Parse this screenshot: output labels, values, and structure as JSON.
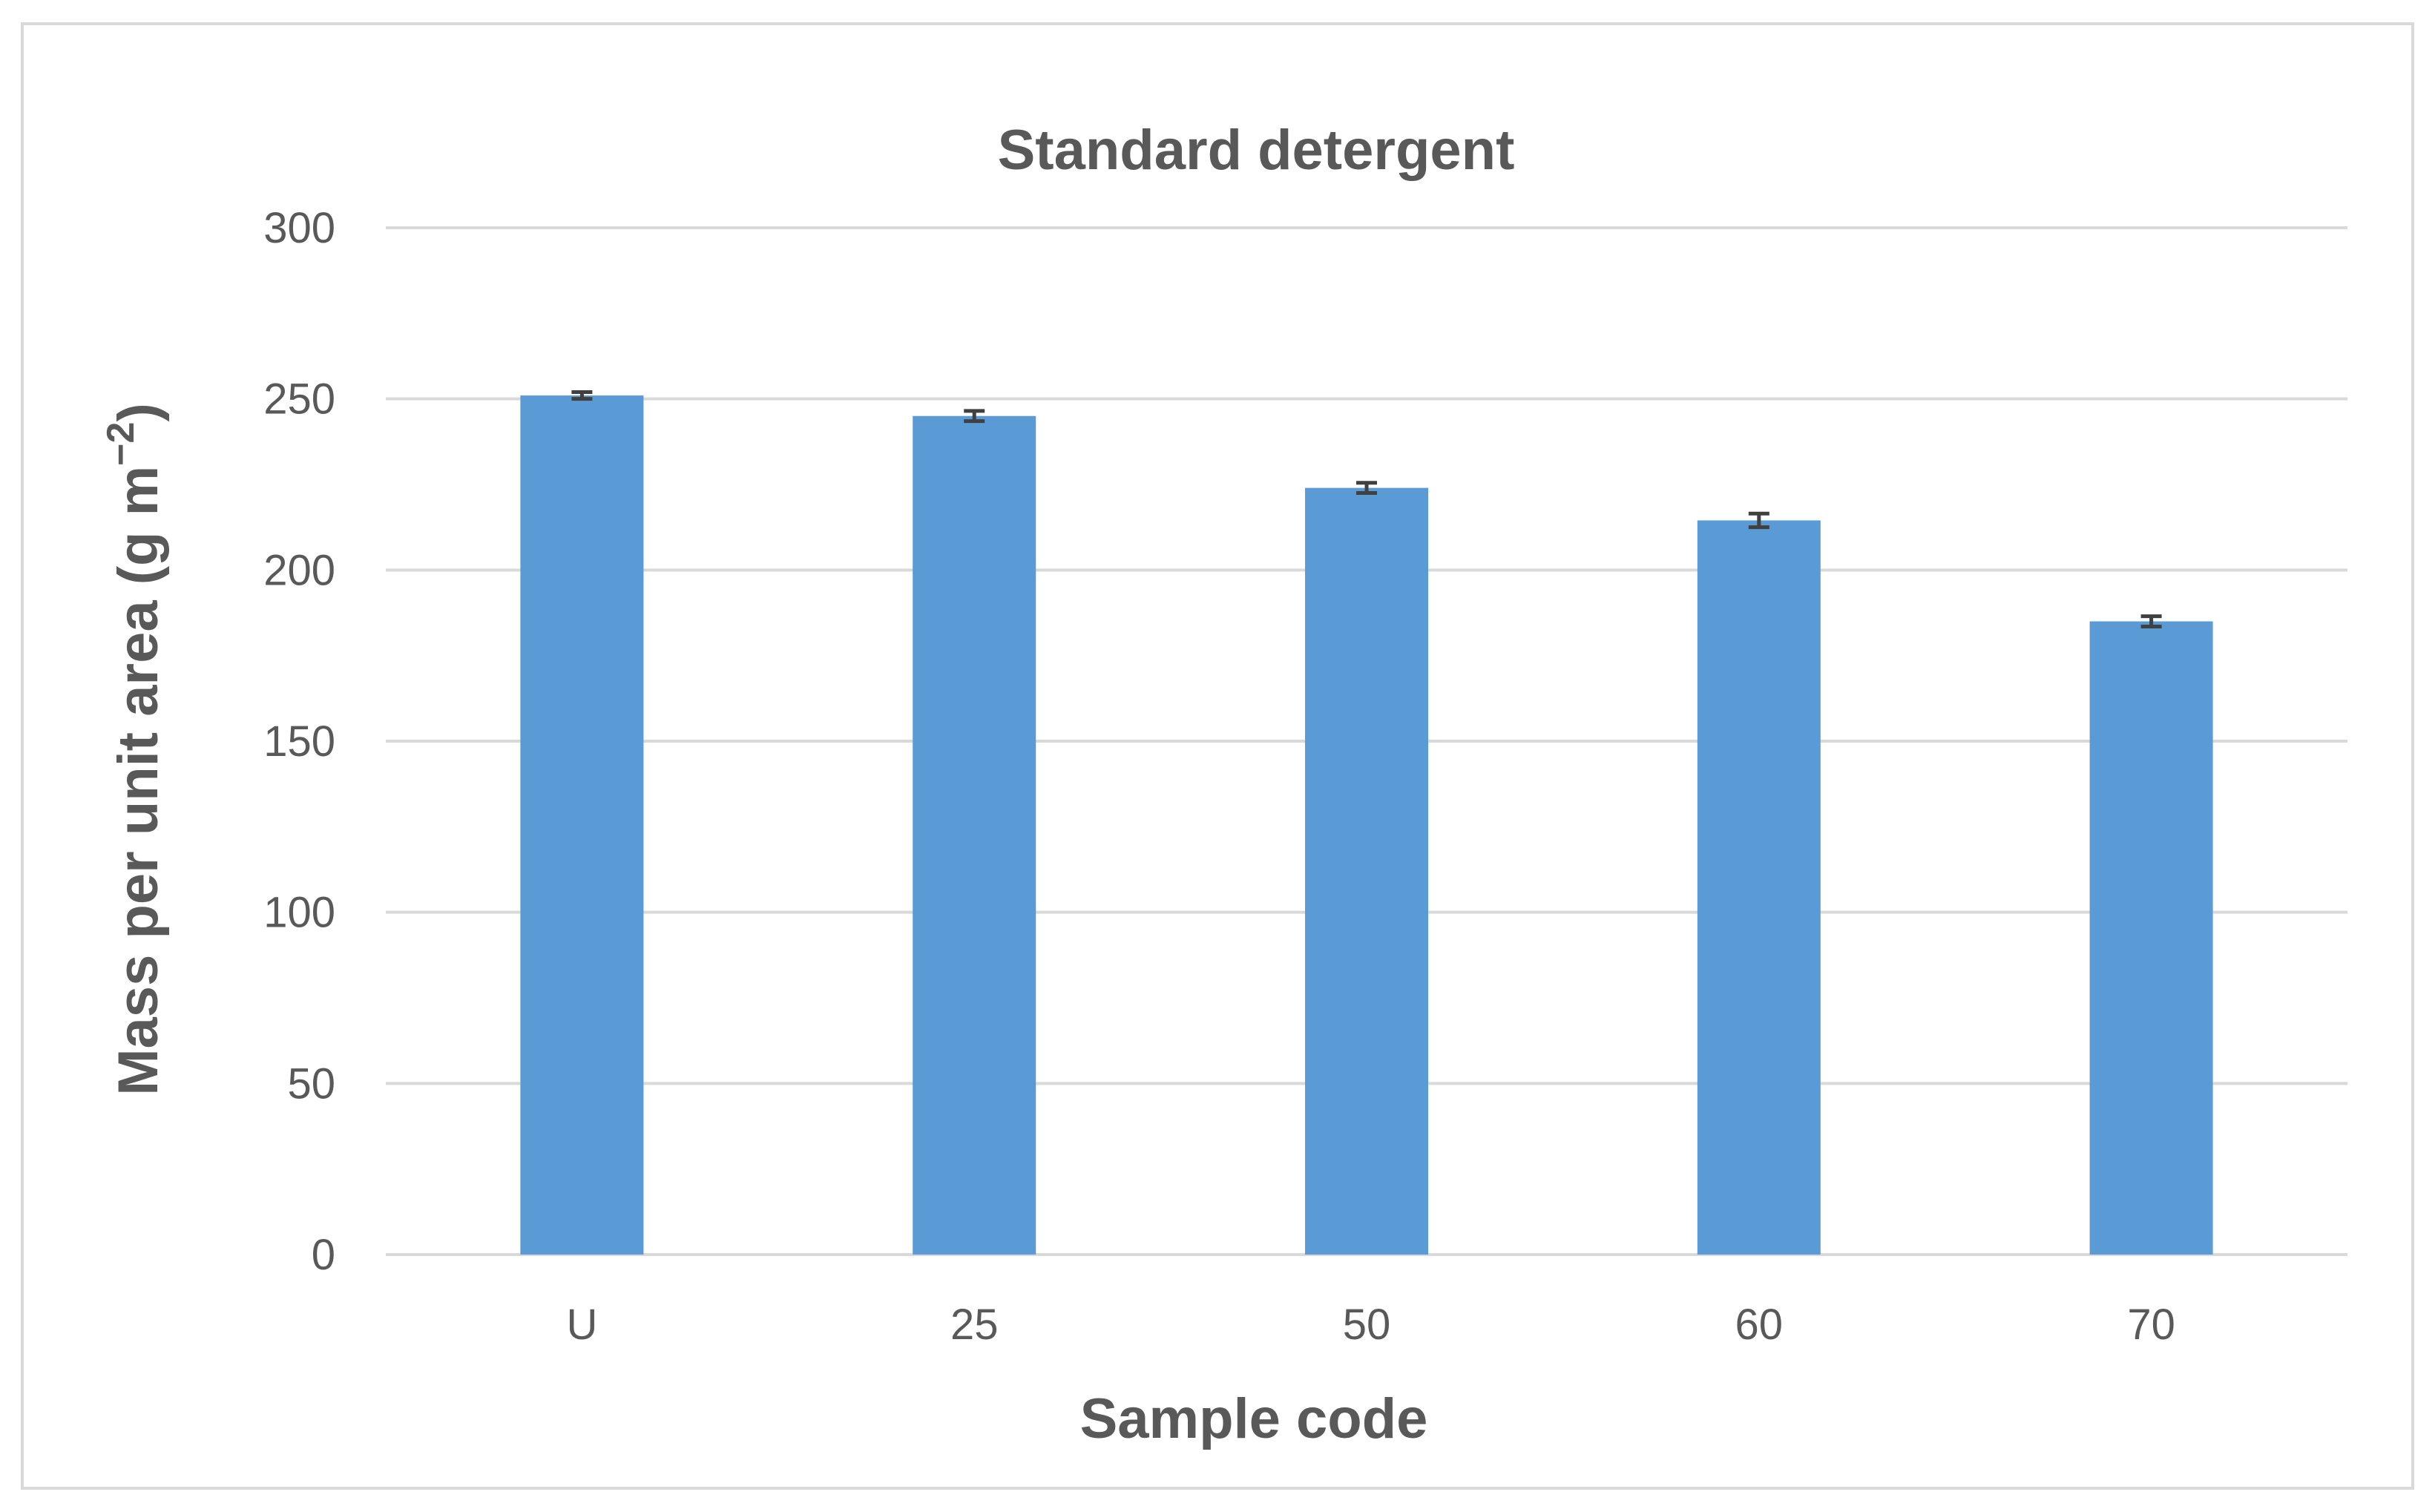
{
  "chart_data": {
    "type": "bar",
    "title": "Standard detergent",
    "xlabel": "Sample code",
    "ylabel": "Mass per unit area  (g m",
    "ylabel_superscript": "−2",
    "ylabel_close": ")",
    "categories": [
      "U",
      "25",
      "50",
      "60",
      "70"
    ],
    "values": [
      251,
      245,
      224,
      214.5,
      185
    ],
    "errors": [
      1,
      1.5,
      1.5,
      2,
      1.5
    ],
    "ylim": [
      0,
      300
    ],
    "yticks": [
      "0",
      "50",
      "100",
      "150",
      "200",
      "250",
      "300"
    ],
    "grid": true,
    "bar_color": "#5b9bd5",
    "text_color": "#595959",
    "grid_color": "#d9d9d9"
  }
}
